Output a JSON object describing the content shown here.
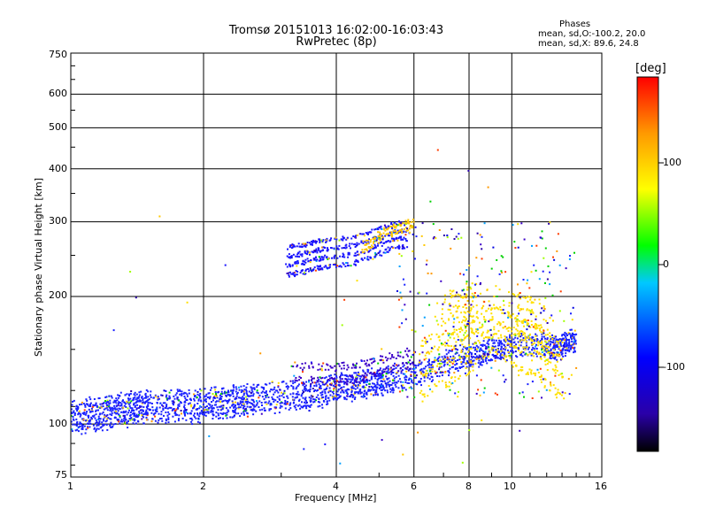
{
  "chart_data": {
    "type": "scatter",
    "title": "Tromsø 20151013 16:02:00-16:03:43",
    "subtitle": "RwPretec (8p)",
    "xlabel": "Frequency [MHz]",
    "ylabel": "Stationary phase Virtual Height [km]",
    "x_scale": "log",
    "y_scale": "log",
    "xlim": [
      1,
      16
    ],
    "ylim": [
      75,
      750
    ],
    "x_ticks": [
      "1",
      "2",
      "4",
      "6",
      "8",
      "10",
      "16"
    ],
    "y_ticks": [
      "750",
      "600",
      "500",
      "400",
      "300",
      "200",
      "100",
      "75"
    ],
    "grid": true,
    "colorbar": {
      "label": "[deg]",
      "range": [
        -180,
        180
      ],
      "tick_labels": [
        "100",
        "0",
        "-100"
      ],
      "colormap": [
        "#000000",
        "#2a00a8",
        "#0000ff",
        "#00c8ff",
        "#00ff00",
        "#ffff00",
        "#ff9900",
        "#ff0000"
      ]
    },
    "phases_box": {
      "heading": "Phases",
      "line_o": "mean, sd,O:-100.2, 20.0",
      "line_x": "mean, sd,X:  89.6, 24.8"
    },
    "point_color_modes": [
      "blue-purple O-mode traces",
      "yellow-orange X-mode traces"
    ],
    "series": [
      {
        "points": [
          [
            1.0,
            100
          ],
          [
            1.05,
            99
          ],
          [
            1.1,
            101
          ],
          [
            1.15,
            100
          ],
          [
            1.2,
            102
          ],
          [
            1.25,
            103
          ],
          [
            1.3,
            104
          ],
          [
            1.35,
            103
          ],
          [
            1.4,
            105
          ],
          [
            1.45,
            104
          ],
          [
            1.5,
            106
          ],
          [
            1.6,
            105
          ],
          [
            1.7,
            106
          ],
          [
            1.8,
            107
          ],
          [
            1.9,
            105
          ],
          [
            2.0,
            106
          ],
          [
            2.1,
            107
          ],
          [
            2.2,
            108
          ],
          [
            2.3,
            108
          ],
          [
            2.4,
            109
          ],
          [
            2.5,
            109
          ],
          [
            2.6,
            110
          ],
          [
            2.8,
            111
          ],
          [
            3.0,
            111
          ],
          [
            3.2,
            112
          ],
          [
            3.4,
            112
          ],
          [
            3.6,
            113
          ],
          [
            3.8,
            115
          ],
          [
            4.0,
            117
          ],
          [
            4.2,
            118
          ],
          [
            4.4,
            118
          ],
          [
            4.6,
            119
          ],
          [
            4.8,
            120
          ],
          [
            5.0,
            121
          ],
          [
            5.2,
            122
          ],
          [
            5.5,
            124
          ],
          [
            6.0,
            126
          ],
          [
            6.5,
            130
          ],
          [
            7.0,
            134
          ],
          [
            7.5,
            138
          ],
          [
            8.0,
            140
          ],
          [
            8.5,
            142
          ],
          [
            9.0,
            144
          ],
          [
            9.5,
            146
          ],
          [
            10.0,
            148
          ],
          [
            11.0,
            150
          ],
          [
            12.0,
            148
          ],
          [
            12.5,
            146
          ],
          [
            13.0,
            148
          ],
          [
            13.5,
            152
          ],
          [
            14.0,
            152
          ]
        ],
        "h_offsets": [
          0,
          3,
          6,
          9,
          12,
          -2
        ],
        "color": "#1a22ff"
      },
      {
        "points": [
          [
            3.2,
            137
          ],
          [
            3.4,
            137
          ],
          [
            3.6,
            137
          ],
          [
            3.8,
            136
          ],
          [
            4.0,
            136
          ],
          [
            4.2,
            137
          ],
          [
            4.4,
            138
          ],
          [
            4.6,
            139
          ],
          [
            4.8,
            140
          ],
          [
            5.0,
            141
          ],
          [
            5.2,
            143
          ],
          [
            5.5,
            145
          ],
          [
            5.8,
            147
          ],
          [
            6.0,
            150
          ]
        ],
        "h_offsets": [
          -10,
          0
        ],
        "color": "#3b00c8"
      },
      {
        "points": [
          [
            3.1,
            225
          ],
          [
            3.2,
            226
          ],
          [
            3.3,
            228
          ],
          [
            3.4,
            229
          ],
          [
            3.5,
            231
          ],
          [
            3.6,
            233
          ],
          [
            3.7,
            234
          ],
          [
            3.8,
            235
          ],
          [
            4.0,
            236
          ],
          [
            4.2,
            238
          ],
          [
            4.4,
            240
          ],
          [
            4.6,
            244
          ],
          [
            4.8,
            248
          ],
          [
            5.0,
            252
          ],
          [
            5.2,
            256
          ],
          [
            5.4,
            260
          ],
          [
            5.6,
            262
          ],
          [
            5.8,
            260
          ]
        ],
        "h_offsets": [
          0,
          12,
          24,
          36
        ],
        "color": "#1a14ff"
      },
      {
        "points": [
          [
            4.6,
            255
          ],
          [
            4.8,
            262
          ],
          [
            5.0,
            270
          ],
          [
            5.2,
            278
          ],
          [
            5.4,
            282
          ],
          [
            5.6,
            285
          ],
          [
            5.8,
            290
          ],
          [
            6.0,
            292
          ]
        ],
        "h_offsets": [
          0,
          10
        ],
        "color": "#ffc800"
      },
      {
        "points": [
          [
            6.2,
            130
          ],
          [
            6.5,
            135
          ],
          [
            7.0,
            140
          ],
          [
            7.5,
            142
          ],
          [
            8.0,
            150
          ],
          [
            8.5,
            160
          ],
          [
            9.0,
            165
          ],
          [
            9.5,
            160
          ],
          [
            10.0,
            155
          ],
          [
            10.5,
            150
          ],
          [
            11.0,
            148
          ],
          [
            11.5,
            145
          ],
          [
            12.0,
            140
          ],
          [
            12.5,
            135
          ],
          [
            13.0,
            130
          ],
          [
            7.2,
            180
          ],
          [
            7.8,
            175
          ],
          [
            8.2,
            190
          ],
          [
            6.8,
            170
          ],
          [
            9.2,
            185
          ],
          [
            11.5,
            170
          ],
          [
            10.2,
            178
          ],
          [
            12.2,
            165
          ]
        ],
        "h_offsets": [
          0,
          -15,
          12,
          24
        ],
        "color": "#ffe000"
      }
    ]
  }
}
